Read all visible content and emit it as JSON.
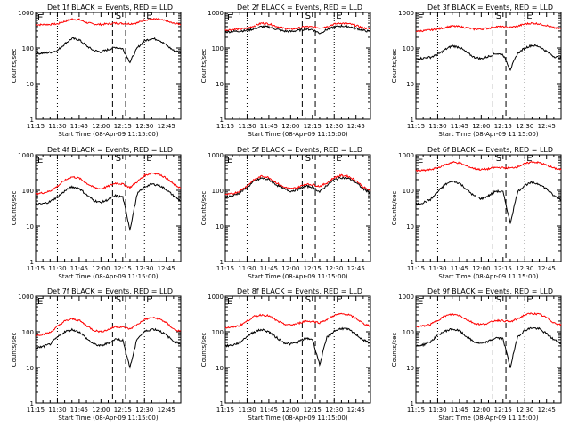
{
  "chart_data": {
    "type": "line",
    "x_tick_labels": [
      "11:15",
      "11:30",
      "11:45",
      "12:00",
      "12:15",
      "12:30",
      "12:45"
    ],
    "x_range": [
      "11:15",
      "12:55"
    ],
    "y_tick_labels": [
      "1",
      "10",
      "100",
      "1000"
    ],
    "y_scale": "log",
    "ylim": [
      1,
      1000
    ],
    "ylabel": "Counts/sec",
    "xlabel": "Start Time (08-Apr-09 11:15:00)",
    "markers": {
      "E": "E",
      "S": "S",
      "ES_left": "E",
      "ES_right": "E"
    },
    "series_colors": {
      "events": "#000000",
      "lld": "#ff0000"
    },
    "panels": [
      {
        "title": "Det 1f BLACK = Events, RED = LLD",
        "events": [
          70,
          72,
          75,
          85,
          130,
          185,
          170,
          115,
          85,
          78,
          90,
          105,
          95,
          40,
          100,
          160,
          185,
          170,
          120,
          85,
          75
        ],
        "lld": [
          450,
          455,
          460,
          475,
          560,
          650,
          630,
          520,
          470,
          460,
          480,
          500,
          490,
          480,
          510,
          610,
          655,
          640,
          570,
          490,
          470
        ]
      },
      {
        "title": "Det 2f BLACK = Events, RED = LLD",
        "events": [
          280,
          290,
          300,
          310,
          350,
          400,
          390,
          340,
          300,
          290,
          310,
          340,
          330,
          260,
          330,
          390,
          420,
          400,
          360,
          310,
          290
        ],
        "lld": [
          320,
          330,
          340,
          360,
          420,
          500,
          480,
          410,
          360,
          340,
          360,
          400,
          390,
          370,
          400,
          470,
          500,
          480,
          430,
          370,
          340
        ]
      },
      {
        "title": "Det 3f BLACK = Events, RED = LLD",
        "events": [
          50,
          52,
          55,
          65,
          90,
          115,
          105,
          75,
          55,
          50,
          58,
          70,
          65,
          25,
          70,
          100,
          120,
          110,
          80,
          58,
          52
        ],
        "lld": [
          300,
          305,
          320,
          340,
          380,
          410,
          400,
          370,
          340,
          340,
          360,
          400,
          390,
          380,
          410,
          470,
          500,
          480,
          430,
          370,
          350
        ]
      },
      {
        "title": "Det 4f BLACK = Events, RED = LLD",
        "events": [
          40,
          42,
          48,
          65,
          95,
          125,
          115,
          75,
          52,
          45,
          55,
          70,
          65,
          8,
          80,
          125,
          150,
          140,
          105,
          70,
          50
        ],
        "lld": [
          80,
          85,
          95,
          130,
          190,
          240,
          220,
          160,
          120,
          110,
          130,
          160,
          150,
          120,
          175,
          260,
          310,
          290,
          220,
          150,
          115
        ]
      },
      {
        "title": "Det 5f BLACK = Events, RED = LLD",
        "events": [
          65,
          70,
          85,
          120,
          180,
          220,
          200,
          145,
          110,
          95,
          105,
          130,
          125,
          90,
          140,
          200,
          230,
          215,
          165,
          110,
          85
        ],
        "lld": [
          75,
          80,
          95,
          135,
          200,
          250,
          230,
          165,
          125,
          110,
          120,
          150,
          145,
          130,
          160,
          230,
          265,
          245,
          190,
          125,
          95
        ]
      },
      {
        "title": "Det 6f BLACK = Events, RED = LLD",
        "events": [
          40,
          45,
          55,
          90,
          145,
          180,
          160,
          105,
          70,
          58,
          70,
          95,
          90,
          12,
          90,
          140,
          165,
          150,
          110,
          70,
          55
        ],
        "lld": [
          350,
          360,
          380,
          430,
          520,
          620,
          590,
          480,
          410,
          380,
          400,
          440,
          430,
          420,
          460,
          560,
          630,
          600,
          510,
          420,
          380
        ]
      },
      {
        "title": "Det 7f BLACK = Events, RED = LLD",
        "events": [
          35,
          38,
          45,
          70,
          100,
          115,
          100,
          65,
          45,
          40,
          48,
          62,
          58,
          10,
          65,
          100,
          120,
          110,
          80,
          55,
          45
        ],
        "lld": [
          80,
          85,
          95,
          140,
          200,
          230,
          210,
          150,
          110,
          100,
          115,
          140,
          135,
          120,
          160,
          220,
          250,
          235,
          180,
          120,
          100
        ]
      },
      {
        "title": "Det 8f BLACK = Events, RED = LLD",
        "events": [
          40,
          42,
          50,
          75,
          100,
          115,
          100,
          70,
          50,
          45,
          52,
          65,
          62,
          12,
          70,
          105,
          125,
          115,
          85,
          58,
          48
        ],
        "lld": [
          130,
          135,
          150,
          200,
          270,
          300,
          280,
          210,
          165,
          155,
          170,
          200,
          195,
          180,
          220,
          290,
          320,
          300,
          240,
          170,
          145
        ]
      },
      {
        "title": "Det 9f BLACK = Events, RED = LLD",
        "events": [
          40,
          43,
          52,
          80,
          105,
          120,
          105,
          72,
          52,
          46,
          54,
          68,
          64,
          10,
          72,
          110,
          130,
          120,
          88,
          60,
          48
        ],
        "lld": [
          140,
          145,
          160,
          210,
          280,
          310,
          290,
          220,
          175,
          160,
          175,
          210,
          205,
          190,
          230,
          300,
          330,
          310,
          250,
          180,
          155
        ]
      }
    ]
  }
}
